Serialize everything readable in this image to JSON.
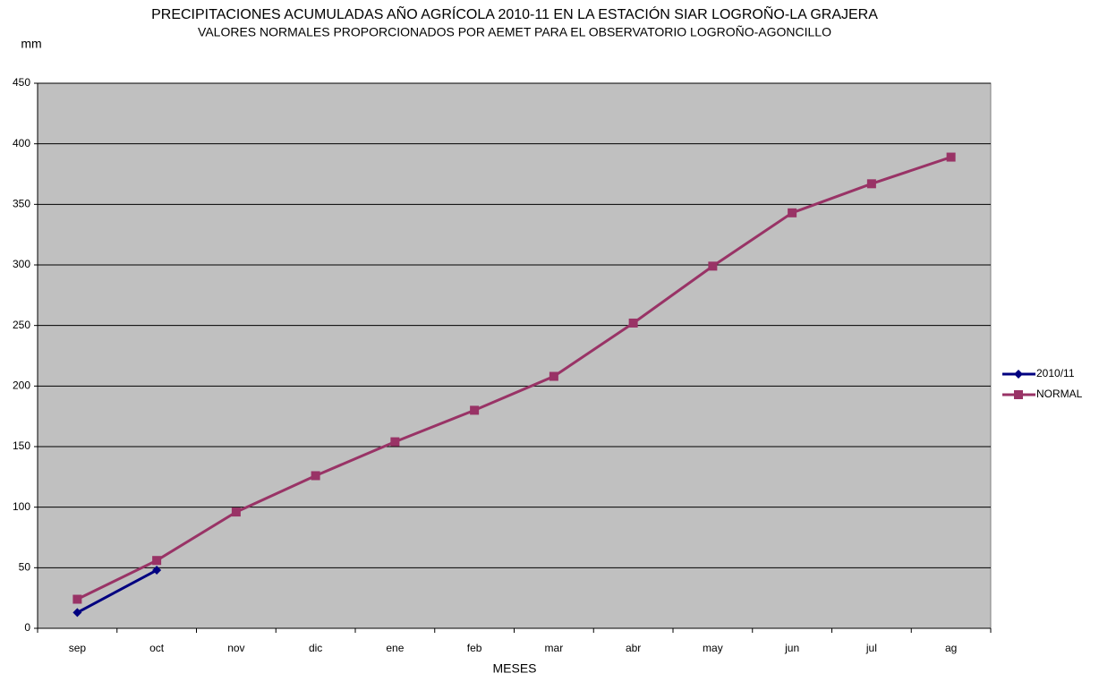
{
  "chart_data": {
    "type": "line",
    "title": "PRECIPITACIONES ACUMULADAS AÑO AGRÍCOLA 2010-11 EN LA ESTACIÓN SIAR LOGROÑO-LA GRAJERA",
    "subtitle": "VALORES NORMALES PROPORCIONADOS POR AEMET PARA EL OBSERVATORIO LOGROÑO-AGONCILLO",
    "y_label": "mm",
    "x_label": "MESES",
    "categories": [
      "sep",
      "oct",
      "nov",
      "dic",
      "ene",
      "feb",
      "mar",
      "abr",
      "may",
      "jun",
      "jul",
      "ag"
    ],
    "series": [
      {
        "name": "2010/11",
        "color": "#000080",
        "marker": "diamond",
        "values": [
          13,
          48,
          null,
          null,
          null,
          null,
          null,
          null,
          null,
          null,
          null,
          null
        ]
      },
      {
        "name": "NORMAL",
        "color": "#993366",
        "marker": "square",
        "values": [
          24,
          56,
          96,
          126,
          154,
          180,
          208,
          252,
          299,
          343,
          367,
          389
        ]
      }
    ],
    "ylim": [
      0,
      450
    ],
    "yticks": [
      0,
      50,
      100,
      150,
      200,
      250,
      300,
      350,
      400,
      450
    ],
    "grid": true,
    "plot_background": "#c0c0c0",
    "legend": "right"
  }
}
